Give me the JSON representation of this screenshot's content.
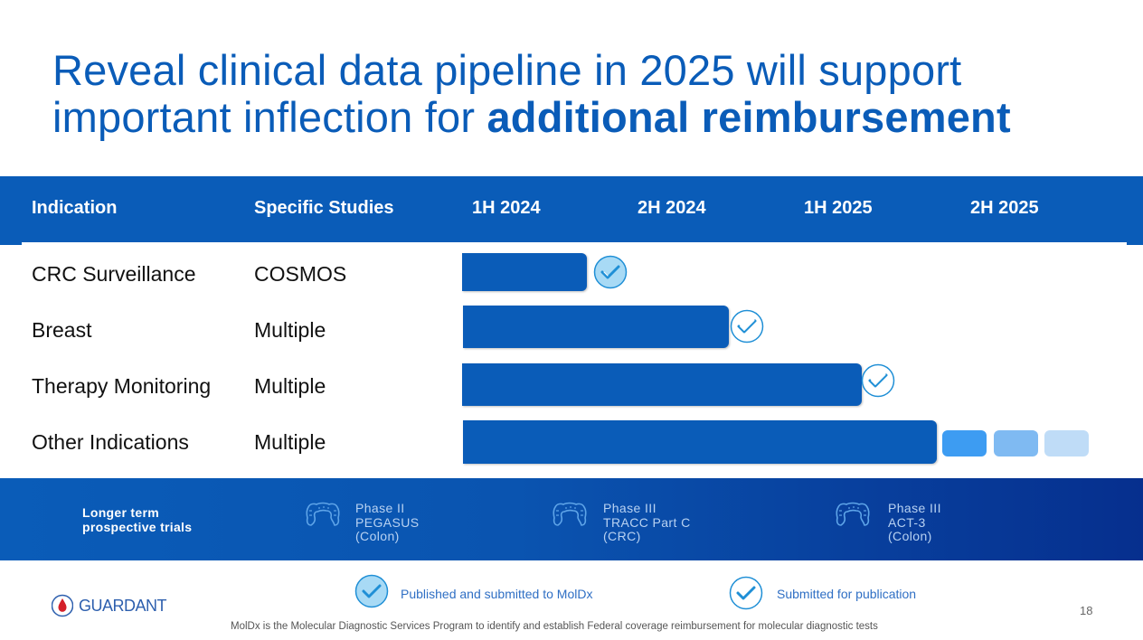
{
  "title": {
    "line1": "Reveal clinical data pipeline in 2025 will support",
    "line2_plain": "important inflection for ",
    "line2_bold": "additional reimbursement"
  },
  "table": {
    "headers": {
      "indication": "Indication",
      "studies": "Specific Studies",
      "periods": [
        "1H 2024",
        "2H 2024",
        "1H 2025",
        "2H 2025"
      ]
    },
    "rows": [
      {
        "indication": "CRC Surveillance",
        "studies": "COSMOS",
        "status": "published",
        "progress_halves": 0.75
      },
      {
        "indication": "Breast",
        "studies": "Multiple",
        "status": "submitted",
        "progress_halves": 1.6
      },
      {
        "indication": "Therapy Monitoring",
        "studies": "Multiple",
        "status": "submitted",
        "progress_halves": 2.4
      },
      {
        "indication": "Other Indications",
        "studies": "Multiple",
        "status": "ongoing",
        "progress_halves": 2.85,
        "continuation_colors": [
          "#3d9cf2",
          "#7fbaf2",
          "#bfdcf7"
        ]
      }
    ]
  },
  "longer_term": {
    "label_line1": "Longer term",
    "label_line2": "prospective trials",
    "trials": [
      {
        "icon": "colon-icon",
        "line1": "Phase II",
        "line2": "PEGASUS",
        "line3": "(Colon)"
      },
      {
        "icon": "colon-icon",
        "line1": "Phase III",
        "line2": "TRACC Part C",
        "line3": "(CRC)"
      },
      {
        "icon": "colon-icon",
        "line1": "Phase III",
        "line2": "ACT-3",
        "line3": "(Colon)"
      }
    ]
  },
  "legend": {
    "published": {
      "icon": "check-filled-icon",
      "label": "Published and submitted to MolDx"
    },
    "submitted": {
      "icon": "check-outline-icon",
      "label": "Submitted for publication"
    }
  },
  "logo": {
    "text": "GUARDANT",
    "color": "#d4202a"
  },
  "page_number": "18",
  "footnote": "MolDx is the Molecular Diagnostic Services Program to identify and establish Federal coverage reimbursement for molecular diagnostic tests",
  "colors": {
    "brand_blue": "#0a5cb8",
    "dark_blue": "#062f8e",
    "check_fill": "#a8daf5",
    "check_stroke": "#1f8fd6"
  }
}
